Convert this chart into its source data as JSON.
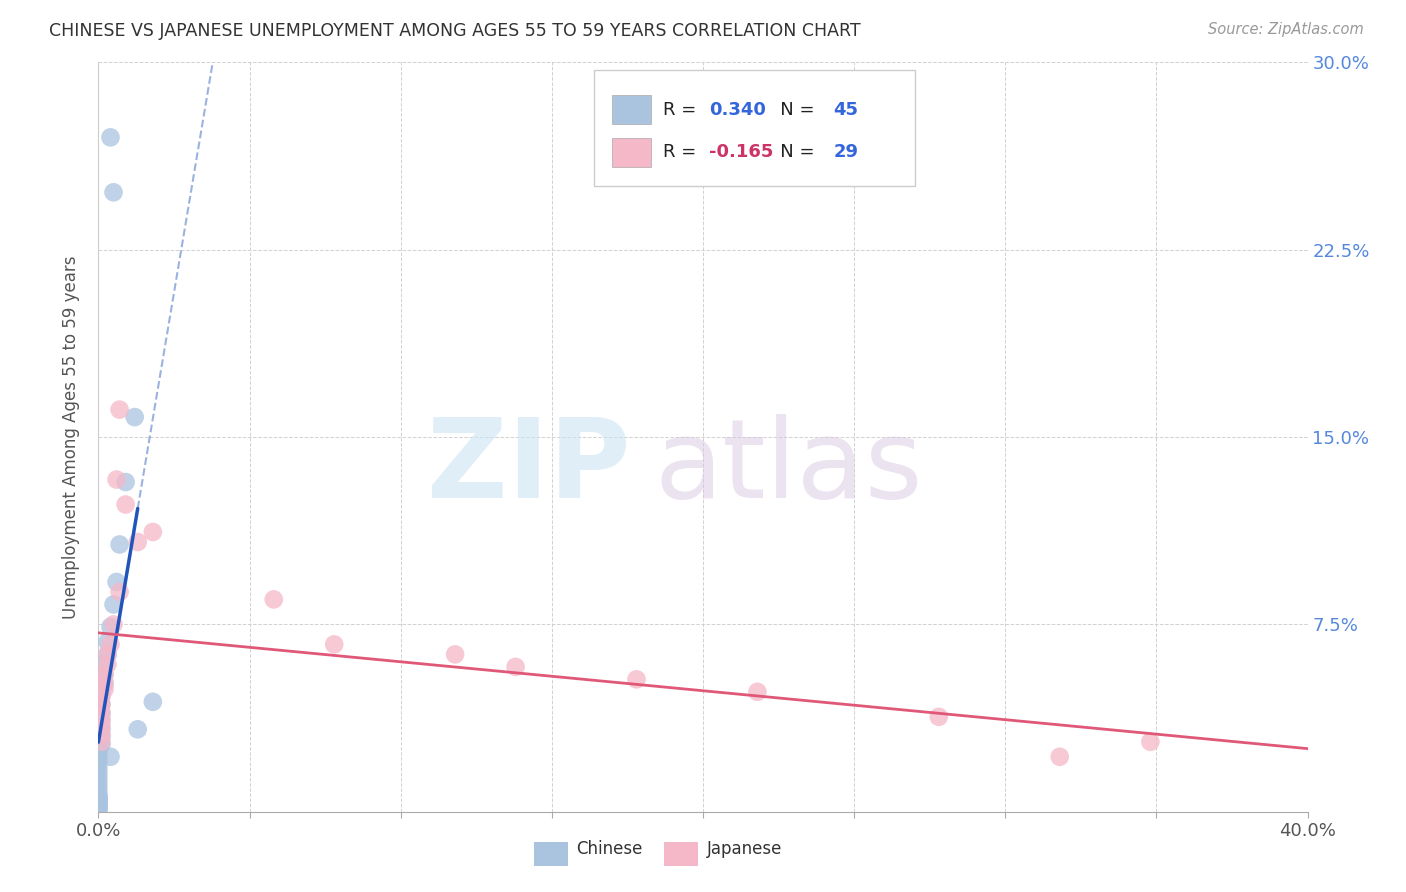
{
  "title": "CHINESE VS JAPANESE UNEMPLOYMENT AMONG AGES 55 TO 59 YEARS CORRELATION CHART",
  "source": "Source: ZipAtlas.com",
  "ylabel": "Unemployment Among Ages 55 to 59 years",
  "xlim": [
    0.0,
    0.4
  ],
  "ylim": [
    0.0,
    0.3
  ],
  "xticks": [
    0.0,
    0.05,
    0.1,
    0.15,
    0.2,
    0.25,
    0.3,
    0.35,
    0.4
  ],
  "yticks": [
    0.0,
    0.075,
    0.15,
    0.225,
    0.3
  ],
  "chinese_R": 0.34,
  "chinese_N": 45,
  "japanese_R": -0.165,
  "japanese_N": 29,
  "chinese_color": "#aac4e0",
  "japanese_color": "#f5b8c8",
  "chinese_line_color": "#2255bb",
  "japanese_line_color": "#e05878",
  "chinese_scatter": [
    [
      0.004,
      0.27
    ],
    [
      0.005,
      0.248
    ],
    [
      0.012,
      0.158
    ],
    [
      0.009,
      0.132
    ],
    [
      0.007,
      0.107
    ],
    [
      0.006,
      0.092
    ],
    [
      0.005,
      0.083
    ],
    [
      0.004,
      0.074
    ],
    [
      0.003,
      0.068
    ],
    [
      0.003,
      0.063
    ],
    [
      0.002,
      0.059
    ],
    [
      0.002,
      0.055
    ],
    [
      0.002,
      0.051
    ],
    [
      0.001,
      0.047
    ],
    [
      0.001,
      0.043
    ],
    [
      0.001,
      0.039
    ],
    [
      0.001,
      0.036
    ],
    [
      0.001,
      0.033
    ],
    [
      0.001,
      0.03
    ],
    [
      0.001,
      0.027
    ],
    [
      0.0,
      0.025
    ],
    [
      0.0,
      0.023
    ],
    [
      0.0,
      0.021
    ],
    [
      0.0,
      0.019
    ],
    [
      0.0,
      0.017
    ],
    [
      0.0,
      0.015
    ],
    [
      0.0,
      0.013
    ],
    [
      0.0,
      0.011
    ],
    [
      0.0,
      0.009
    ],
    [
      0.0,
      0.007
    ],
    [
      0.0,
      0.006
    ],
    [
      0.0,
      0.005
    ],
    [
      0.0,
      0.004
    ],
    [
      0.0,
      0.003
    ],
    [
      0.0,
      0.002
    ],
    [
      0.0,
      0.001
    ],
    [
      0.0,
      0.001
    ],
    [
      0.0,
      0.002
    ],
    [
      0.0,
      0.003
    ],
    [
      0.0,
      0.004
    ],
    [
      0.0,
      0.005
    ],
    [
      0.0,
      0.006
    ],
    [
      0.018,
      0.044
    ],
    [
      0.013,
      0.033
    ],
    [
      0.004,
      0.022
    ]
  ],
  "japanese_scatter": [
    [
      0.007,
      0.161
    ],
    [
      0.006,
      0.133
    ],
    [
      0.009,
      0.123
    ],
    [
      0.013,
      0.108
    ],
    [
      0.007,
      0.088
    ],
    [
      0.018,
      0.112
    ],
    [
      0.005,
      0.075
    ],
    [
      0.004,
      0.067
    ],
    [
      0.003,
      0.063
    ],
    [
      0.003,
      0.059
    ],
    [
      0.002,
      0.055
    ],
    [
      0.002,
      0.052
    ],
    [
      0.002,
      0.049
    ],
    [
      0.001,
      0.046
    ],
    [
      0.001,
      0.043
    ],
    [
      0.001,
      0.04
    ],
    [
      0.001,
      0.037
    ],
    [
      0.001,
      0.034
    ],
    [
      0.001,
      0.031
    ],
    [
      0.001,
      0.028
    ],
    [
      0.058,
      0.085
    ],
    [
      0.078,
      0.067
    ],
    [
      0.118,
      0.063
    ],
    [
      0.138,
      0.058
    ],
    [
      0.178,
      0.053
    ],
    [
      0.218,
      0.048
    ],
    [
      0.278,
      0.038
    ],
    [
      0.348,
      0.028
    ],
    [
      0.318,
      0.022
    ]
  ],
  "ch_line_x0": 0.0,
  "ch_line_x_solid_end": 0.013,
  "ch_line_x_dash_end": 0.4,
  "jp_line_x0": 0.0,
  "jp_line_x1": 0.4
}
